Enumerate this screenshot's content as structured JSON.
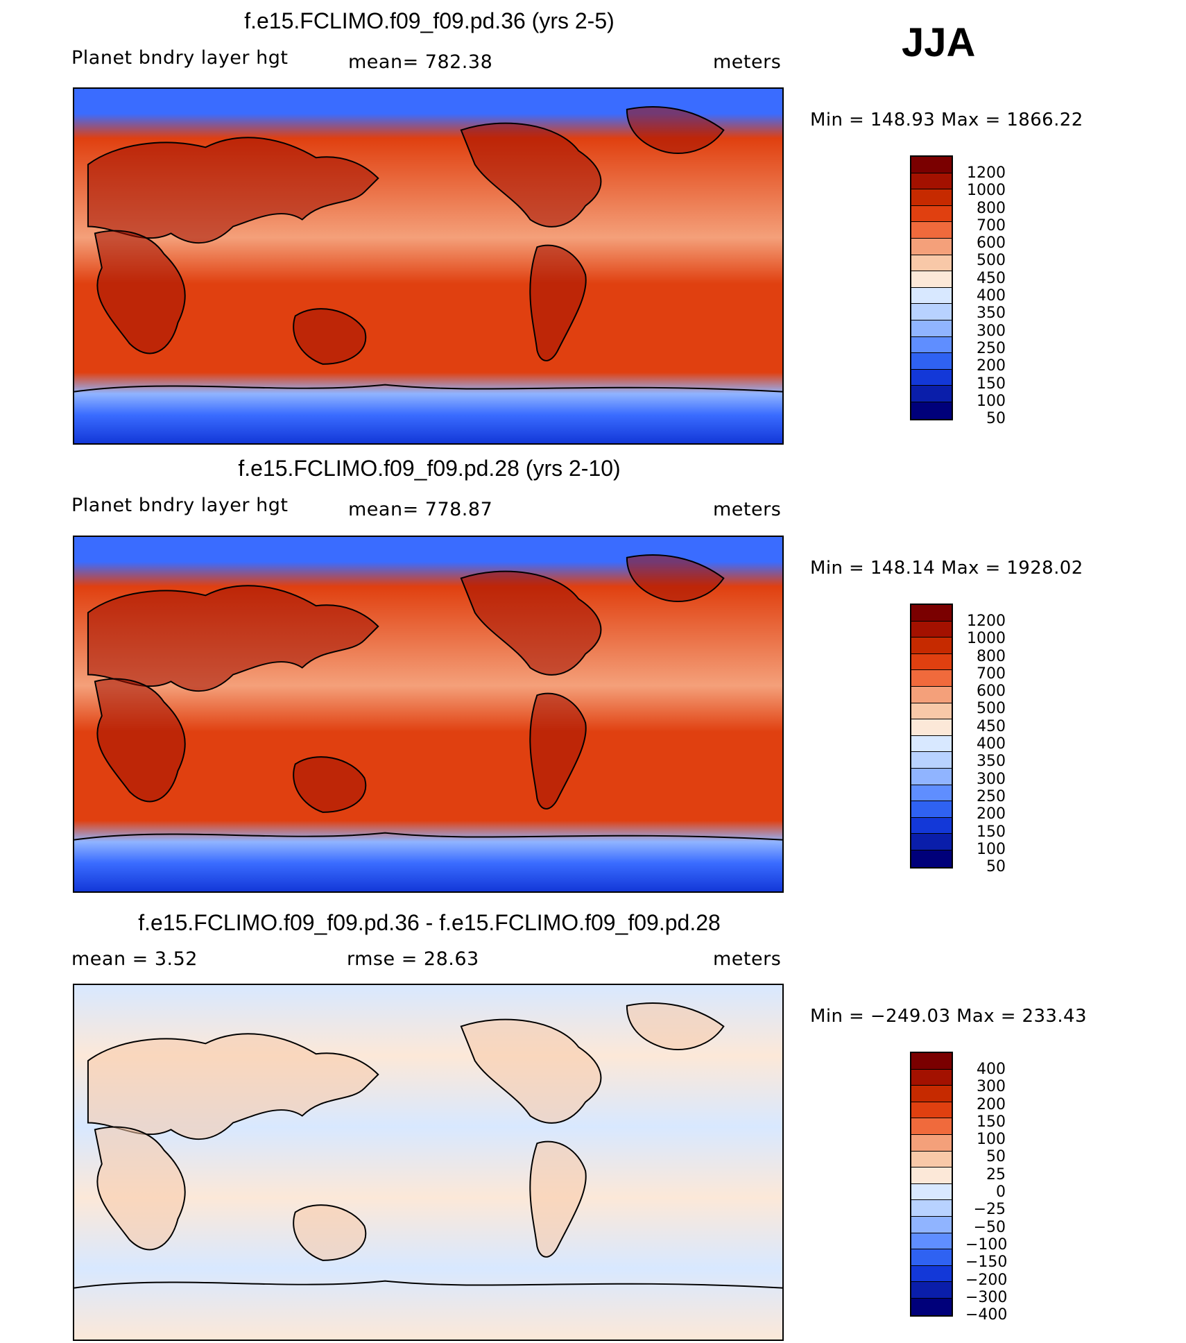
{
  "season": "JJA",
  "red_palette": [
    "#7a0000",
    "#a31100",
    "#c62a00",
    "#e04010",
    "#f06a3c",
    "#f4a07a",
    "#f8c8a8",
    "#fce8d8",
    "#d8e8ff",
    "#b8d2ff",
    "#90b4ff",
    "#5f8eff",
    "#2f62f2",
    "#1338d8",
    "#0a1eaa",
    "#00007a"
  ],
  "chart_data": [
    {
      "type": "heatmap",
      "title": "f.e15.FCLIMO.f09_f09.pd.36 (yrs 2-5)",
      "left_label": "Planet bndry layer hgt",
      "center_label": "mean=  782.38",
      "mean": 782.38,
      "units": "meters",
      "minmax": "Min  =  148.93  Max  =  1866.22",
      "min": 148.93,
      "max": 1866.22,
      "colorbar_labels": [
        "1200",
        "1000",
        "800",
        "700",
        "600",
        "500",
        "450",
        "400",
        "350",
        "300",
        "250",
        "200",
        "150",
        "100",
        "50"
      ]
    },
    {
      "type": "heatmap",
      "title": "f.e15.FCLIMO.f09_f09.pd.28 (yrs 2-10)",
      "left_label": "Planet bndry layer hgt",
      "center_label": "mean=  778.87",
      "mean": 778.87,
      "units": "meters",
      "minmax": "Min  =  148.14  Max  =  1928.02",
      "min": 148.14,
      "max": 1928.02,
      "colorbar_labels": [
        "1200",
        "1000",
        "800",
        "700",
        "600",
        "500",
        "450",
        "400",
        "350",
        "300",
        "250",
        "200",
        "150",
        "100",
        "50"
      ]
    },
    {
      "type": "heatmap",
      "title": "f.e15.FCLIMO.f09_f09.pd.36 - f.e15.FCLIMO.f09_f09.pd.28",
      "left_label": "mean  =     3.52",
      "mean": 3.52,
      "center_label": "rmse  =    28.63",
      "rmse": 28.63,
      "units": "meters",
      "minmax": "Min  =  −249.03  Max  =  233.43",
      "min": -249.03,
      "max": 233.43,
      "colorbar_labels": [
        "400",
        "300",
        "200",
        "150",
        "100",
        "50",
        "25",
        "0",
        "−25",
        "−50",
        "−100",
        "−150",
        "−200",
        "−300",
        "−400"
      ]
    }
  ]
}
